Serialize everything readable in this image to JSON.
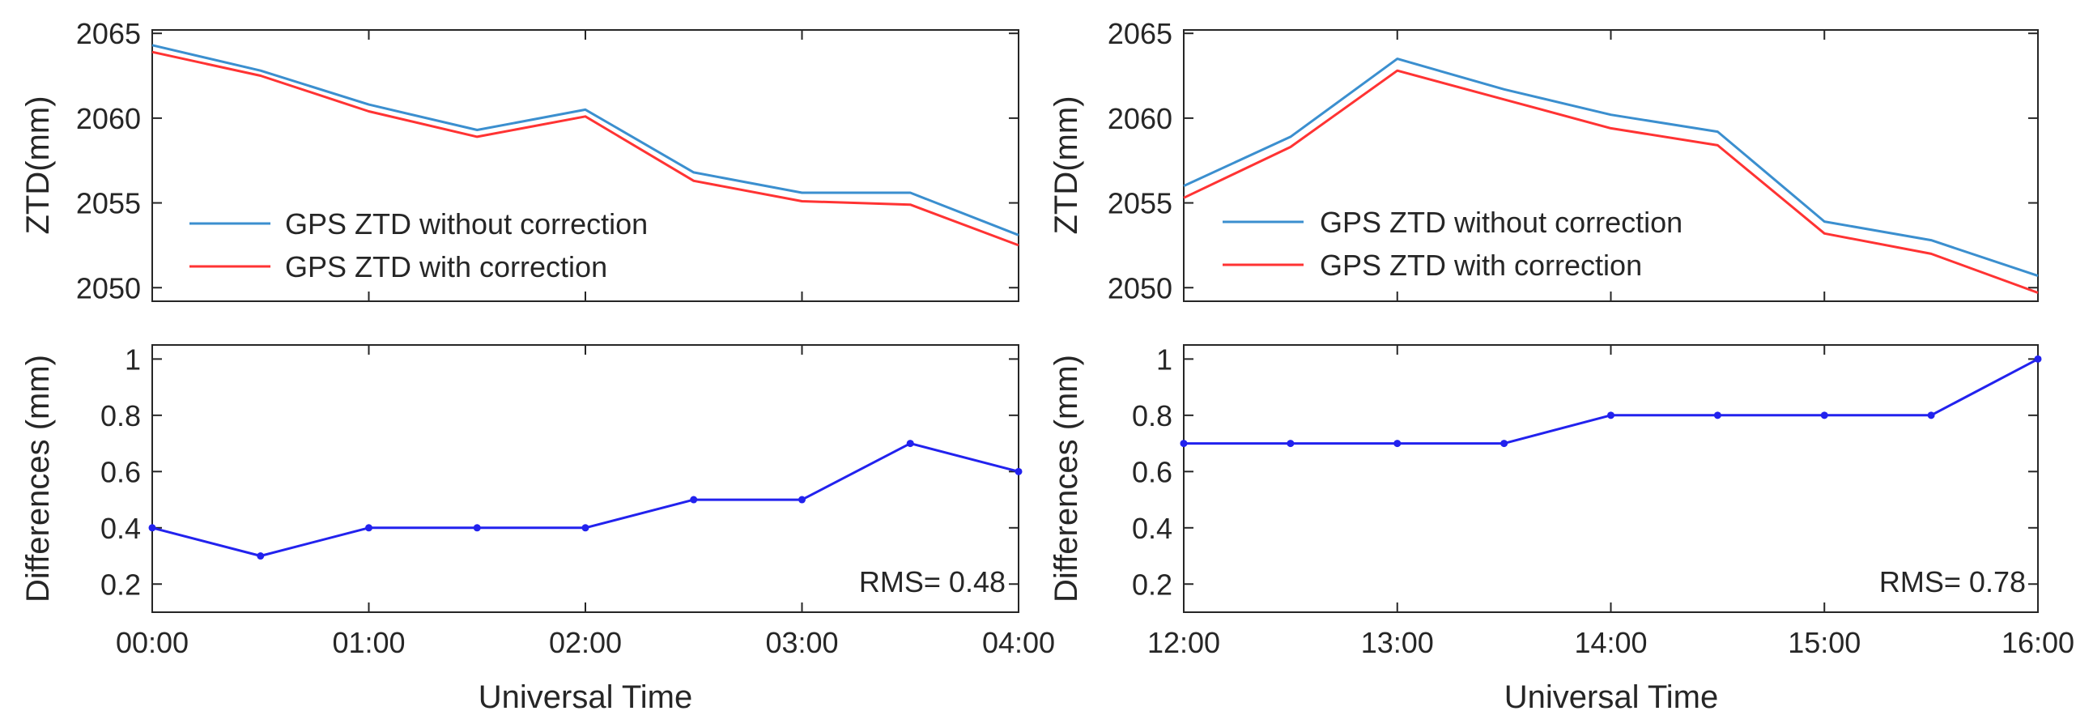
{
  "figure": {
    "xlabel": "Universal Time",
    "ztd_ylabel": "ZTD(mm)",
    "diff_ylabel": "Differences (mm)"
  },
  "colors": {
    "without_correction": "#3b8fcf",
    "with_correction": "#ff3333",
    "difference": "#2222ee",
    "axis": "#262626"
  },
  "chart_data": [
    {
      "id": "left-ztd",
      "type": "line",
      "x_ticks": [
        "00:00",
        "01:00",
        "02:00",
        "03:00",
        "04:00"
      ],
      "x": [
        0,
        0.5,
        1,
        1.5,
        2,
        2.5,
        3,
        3.5,
        4
      ],
      "xlim": [
        0,
        4
      ],
      "ylabel": "ZTD(mm)",
      "ylim": [
        2049.2,
        2065.2
      ],
      "y_ticks": [
        2050,
        2055,
        2060,
        2065
      ],
      "legend": "bottom-left",
      "series": [
        {
          "name": "GPS ZTD without correction",
          "values": [
            2064.3,
            2062.8,
            2060.8,
            2059.3,
            2060.5,
            2056.8,
            2055.6,
            2055.6,
            2053.1
          ]
        },
        {
          "name": "GPS ZTD with correction",
          "values": [
            2063.9,
            2062.5,
            2060.4,
            2058.9,
            2060.1,
            2056.3,
            2055.1,
            2054.9,
            2052.5
          ]
        }
      ]
    },
    {
      "id": "left-diff",
      "type": "line",
      "x_ticks": [
        "00:00",
        "01:00",
        "02:00",
        "03:00",
        "04:00"
      ],
      "x": [
        0,
        0.5,
        1,
        1.5,
        2,
        2.5,
        3,
        3.5,
        4
      ],
      "xlim": [
        0,
        4
      ],
      "xlabel": "Universal Time",
      "ylabel": "Differences (mm)",
      "ylim": [
        0.1,
        1.05
      ],
      "y_ticks": [
        0.2,
        0.4,
        0.6,
        0.8,
        1
      ],
      "series": [
        {
          "name": "Differences",
          "values": [
            0.4,
            0.3,
            0.4,
            0.4,
            0.4,
            0.5,
            0.5,
            0.7,
            0.6
          ]
        }
      ],
      "annotation": "RMS= 0.48"
    },
    {
      "id": "right-ztd",
      "type": "line",
      "x_ticks": [
        "12:00",
        "13:00",
        "14:00",
        "15:00",
        "16:00"
      ],
      "x": [
        12,
        12.5,
        13,
        13.5,
        14,
        14.5,
        15,
        15.5,
        16
      ],
      "xlim": [
        12,
        16
      ],
      "ylabel": "ZTD(mm)",
      "ylim": [
        2049.2,
        2065.2
      ],
      "y_ticks": [
        2050,
        2055,
        2060,
        2065
      ],
      "legend": "bottom-left",
      "series": [
        {
          "name": "GPS ZTD without correction",
          "values": [
            2056.0,
            2058.9,
            2063.5,
            2061.7,
            2060.2,
            2059.2,
            2053.9,
            2052.8,
            2050.7
          ]
        },
        {
          "name": "GPS ZTD with correction",
          "values": [
            2055.3,
            2058.3,
            2062.8,
            2061.1,
            2059.4,
            2058.4,
            2053.2,
            2052.0,
            2049.7
          ]
        }
      ]
    },
    {
      "id": "right-diff",
      "type": "line",
      "x_ticks": [
        "12:00",
        "13:00",
        "14:00",
        "15:00",
        "16:00"
      ],
      "x": [
        12,
        12.5,
        13,
        13.5,
        14,
        14.5,
        15,
        15.5,
        16
      ],
      "xlim": [
        12,
        16
      ],
      "xlabel": "Universal Time",
      "ylabel": "Differences (mm)",
      "ylim": [
        0.1,
        1.05
      ],
      "y_ticks": [
        0.2,
        0.4,
        0.6,
        0.8,
        1
      ],
      "series": [
        {
          "name": "Differences",
          "values": [
            0.7,
            0.7,
            0.7,
            0.7,
            0.8,
            0.8,
            0.8,
            0.8,
            1.0
          ]
        }
      ],
      "annotation": "RMS= 0.78"
    }
  ]
}
